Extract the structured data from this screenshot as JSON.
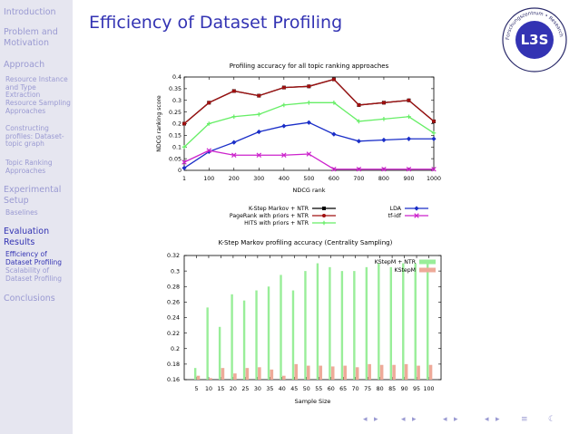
{
  "sidebar": {
    "sections": [
      {
        "label": "Introduction"
      },
      {
        "label": "Problem and Motivation"
      },
      {
        "label": "Approach",
        "subs": [
          "Resource Instance and Type Extraction",
          "Resource Sampling Approaches",
          "Constructing profiles: Dataset-topic graph",
          "Topic Ranking Approaches"
        ]
      },
      {
        "label": "Experimental Setup",
        "subs": [
          "Baselines"
        ]
      },
      {
        "label": "Evaluation Results",
        "subs": [
          "Efficiency of Dataset Profiling",
          "Scalability of Dataset Profiling"
        ]
      },
      {
        "label": "Conclusions"
      }
    ]
  },
  "slide": {
    "title": "Efficiency of Dataset Profiling"
  },
  "logo": {
    "text": "L3S",
    "ring_text": "Forschungszentrum • Research Center"
  },
  "colors": {
    "accent": "#3333b3",
    "sidebar_bg": "#e6e6f0",
    "sidebar_inactive": "#9a9ad2",
    "kstep": "#000000",
    "pagerank": "#a01010",
    "hits": "#66ee66",
    "lda": "#1a2ec8",
    "tfidf": "#cc22cc",
    "kstep_ntr_bar": "#99ee99",
    "kstepm_bar": "#eeaa99"
  },
  "chart_data": [
    {
      "type": "line",
      "title": "Profiling accuracy for all topic ranking approaches",
      "xlabel": "NDCG rank",
      "ylabel": "NDCG ranking score",
      "x": [
        1,
        100,
        200,
        300,
        400,
        500,
        600,
        700,
        800,
        900,
        1000
      ],
      "x_ticks": [
        "1",
        "100",
        "200",
        "300",
        "400",
        "500",
        "600",
        "700",
        "800",
        "900",
        "1000"
      ],
      "ylim": [
        0,
        0.4
      ],
      "y_ticks": [
        "0",
        "0.05",
        "0.1",
        "0.15",
        "0.2",
        "0.25",
        "0.3",
        "0.35",
        "0.4"
      ],
      "series": [
        {
          "name": "K-Step Markov + NTR",
          "values": [
            0.2,
            0.29,
            0.34,
            0.32,
            0.355,
            0.36,
            0.39,
            0.28,
            0.29,
            0.3,
            0.21
          ],
          "color_key": "kstep"
        },
        {
          "name": "PageRank with priors + NTR",
          "values": [
            0.2,
            0.29,
            0.34,
            0.32,
            0.355,
            0.36,
            0.39,
            0.28,
            0.29,
            0.3,
            0.21
          ],
          "color_key": "pagerank"
        },
        {
          "name": "HITS with priors + NTR",
          "values": [
            0.1,
            0.2,
            0.23,
            0.24,
            0.28,
            0.29,
            0.29,
            0.21,
            0.22,
            0.23,
            0.16
          ],
          "color_key": "hits"
        },
        {
          "name": "LDA",
          "values": [
            0.01,
            0.08,
            0.12,
            0.165,
            0.19,
            0.205,
            0.155,
            0.125,
            0.13,
            0.135,
            0.135
          ],
          "color_key": "lda"
        },
        {
          "name": "tf-idf",
          "values": [
            0.035,
            0.085,
            0.065,
            0.065,
            0.065,
            0.07,
            0.005,
            0.005,
            0.005,
            0.005,
            0.005
          ],
          "color_key": "tfidf"
        }
      ],
      "legend": "bottom"
    },
    {
      "type": "bar",
      "title": "K-Step Markov profiling accuracy (Centrality Sampling)",
      "xlabel": "Sample Size",
      "ylabel": "",
      "categories": [
        "5",
        "10",
        "15",
        "20",
        "25",
        "30",
        "35",
        "40",
        "45",
        "50",
        "55",
        "60",
        "65",
        "70",
        "75",
        "80",
        "85",
        "90",
        "95",
        "100"
      ],
      "ylim": [
        0.16,
        0.32
      ],
      "y_ticks": [
        "0.16",
        "0.18",
        "0.2",
        "0.22",
        "0.24",
        "0.26",
        "0.28",
        "0.3",
        "0.32"
      ],
      "series": [
        {
          "name": "KStepM + NTR",
          "values": [
            0.175,
            0.253,
            0.228,
            0.27,
            0.262,
            0.275,
            0.28,
            0.295,
            0.275,
            0.3,
            0.31,
            0.305,
            0.3,
            0.3,
            0.305,
            0.31,
            0.305,
            0.31,
            0.31,
            0.312
          ],
          "color_key": "kstep_ntr_bar"
        },
        {
          "name": "KStepM",
          "values": [
            0.165,
            0.162,
            0.175,
            0.168,
            0.175,
            0.176,
            0.173,
            0.165,
            0.18,
            0.178,
            0.178,
            0.177,
            0.178,
            0.176,
            0.18,
            0.179,
            0.179,
            0.18,
            0.178,
            0.179
          ],
          "color_key": "kstepm_bar"
        }
      ],
      "legend": "top-right"
    }
  ],
  "navigation": {
    "icons": [
      "nav-left",
      "nav-right",
      "nav-section-left",
      "nav-section-right",
      "nav-subsection-left",
      "nav-subsection-right",
      "nav-frame-left",
      "nav-frame-right",
      "nav-align",
      "nav-search"
    ],
    "glyphs": [
      "◂",
      "▸",
      "◂",
      "▸",
      "◂",
      "▸",
      "◂",
      "▸",
      "≡",
      "☾"
    ]
  }
}
